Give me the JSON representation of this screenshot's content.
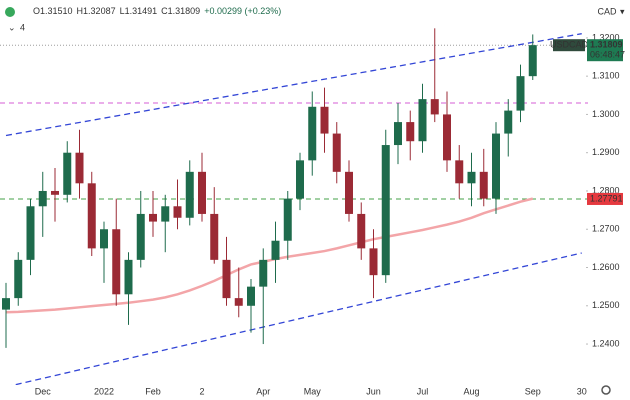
{
  "chart_data": {
    "type": "candlestick",
    "header": {
      "ohlc": [
        "O1.31510",
        "H1.32087",
        "L1.31491",
        "C1.31809"
      ],
      "change": "+0.00299 (+0.23%)",
      "indicators": 4
    },
    "currency": "CAD",
    "symbol": "USDCAD",
    "countdown": "06:48:47",
    "categories": [
      null,
      null,
      null,
      "Dec",
      null,
      null,
      null,
      null,
      "2022",
      null,
      null,
      null,
      "Feb",
      null,
      null,
      null,
      "2",
      null,
      null,
      null,
      null,
      "Apr",
      null,
      null,
      null,
      "May",
      null,
      null,
      null,
      null,
      "Jun",
      null,
      null,
      null,
      "Jul",
      null,
      null,
      null,
      "Aug",
      null,
      null,
      null,
      null,
      "Sep",
      null,
      null,
      null,
      "30"
    ],
    "open": [
      1.249,
      1.252,
      1.262,
      1.276,
      1.28,
      1.279,
      1.29,
      1.282,
      1.265,
      1.27,
      1.253,
      1.262,
      1.274,
      1.272,
      1.276,
      1.273,
      1.285,
      1.274,
      1.262,
      1.252,
      1.25,
      1.255,
      1.262,
      1.267,
      1.278,
      1.288,
      1.302,
      1.295,
      1.285,
      1.274,
      1.265,
      1.258,
      1.292,
      1.298,
      1.293,
      1.304,
      1.3,
      1.288,
      1.282,
      1.285,
      1.278,
      1.295,
      1.301,
      1.31,
      null,
      null,
      null,
      null
    ],
    "high": [
      1.256,
      1.264,
      1.278,
      1.285,
      1.286,
      1.293,
      1.296,
      1.285,
      1.272,
      1.278,
      1.264,
      1.28,
      1.28,
      1.279,
      1.283,
      1.288,
      1.29,
      1.281,
      1.268,
      1.26,
      1.257,
      1.265,
      1.272,
      1.28,
      1.29,
      1.306,
      1.307,
      1.298,
      1.288,
      1.277,
      1.27,
      1.296,
      1.303,
      1.301,
      1.308,
      1.3225,
      1.306,
      1.292,
      1.29,
      1.291,
      1.298,
      1.304,
      1.313,
      1.3209,
      null,
      null,
      null,
      null
    ],
    "low": [
      1.239,
      1.25,
      1.258,
      1.268,
      1.272,
      1.277,
      1.278,
      1.263,
      1.256,
      1.25,
      1.245,
      1.26,
      1.268,
      1.264,
      1.27,
      1.271,
      1.272,
      1.261,
      1.25,
      1.247,
      1.243,
      1.24,
      1.256,
      1.262,
      1.275,
      1.284,
      1.29,
      1.282,
      1.272,
      1.262,
      1.252,
      1.256,
      1.287,
      1.288,
      1.29,
      1.298,
      1.285,
      1.278,
      1.276,
      1.276,
      1.274,
      1.289,
      1.298,
      1.309,
      null,
      null,
      null,
      null
    ],
    "close": [
      1.252,
      1.262,
      1.276,
      1.28,
      1.279,
      1.29,
      1.282,
      1.265,
      1.27,
      1.253,
      1.262,
      1.274,
      1.272,
      1.276,
      1.273,
      1.285,
      1.274,
      1.262,
      1.252,
      1.25,
      1.255,
      1.262,
      1.267,
      1.278,
      1.288,
      1.302,
      1.295,
      1.285,
      1.274,
      1.265,
      1.258,
      1.292,
      1.298,
      1.293,
      1.304,
      1.3,
      1.288,
      1.282,
      1.285,
      1.278,
      1.295,
      1.301,
      1.31,
      1.3181,
      null,
      null,
      null,
      null
    ],
    "up_color": "#1e6b4c",
    "down_color": "#9b2a35",
    "moving_average": {
      "color": "#f3a5a8",
      "values": [
        1.2483,
        1.2484,
        1.2486,
        1.2488,
        1.249,
        1.2493,
        1.2496,
        1.2499,
        1.2502,
        1.2505,
        1.2508,
        1.2512,
        1.2516,
        1.2522,
        1.253,
        1.254,
        1.2552,
        1.2565,
        1.258,
        1.2595,
        1.2608,
        1.2615,
        1.2622,
        1.2628,
        1.2633,
        1.2638,
        1.2643,
        1.265,
        1.2658,
        1.2666,
        1.2674,
        1.268,
        1.2686,
        1.2692,
        1.2698,
        1.2705,
        1.2712,
        1.272,
        1.273,
        1.2742,
        1.2752,
        1.2762,
        1.2772,
        1.278,
        null,
        null,
        null,
        null
      ]
    },
    "hlines": [
      {
        "value": 1.303,
        "color": "#d65cd6",
        "dash": "5,4"
      },
      {
        "value": 1.27791,
        "label": "1.27791",
        "color": "#43a047",
        "dash": "5,4",
        "tag_color": "#e5393f"
      },
      {
        "value": 1.31809,
        "label": "1.31809",
        "color": "#9e9e9e",
        "dash": "1,2",
        "tag_color": "#1e7a52"
      }
    ],
    "trendlines": [
      {
        "color": "#3346d6",
        "values": [
          1.2945,
          1.3211
        ]
      },
      {
        "color": "#3346d6",
        "values": [
          1.2288,
          1.2638
        ]
      }
    ],
    "ylim": [
      1.2293,
      1.3299
    ],
    "yticks": [
      {
        "value": 1.24,
        "label": "1.2400"
      },
      {
        "value": 1.25,
        "label": "1.2500"
      },
      {
        "value": 1.26,
        "label": "1.2600"
      },
      {
        "value": 1.27,
        "label": "1.2700"
      },
      {
        "value": 1.28,
        "label": "1.2800"
      },
      {
        "value": 1.29,
        "label": "1.2900"
      },
      {
        "value": 1.3,
        "label": "1.3000"
      },
      {
        "value": 1.31,
        "label": "1.3100"
      },
      {
        "value": 1.32,
        "label": "1.3200"
      }
    ]
  }
}
